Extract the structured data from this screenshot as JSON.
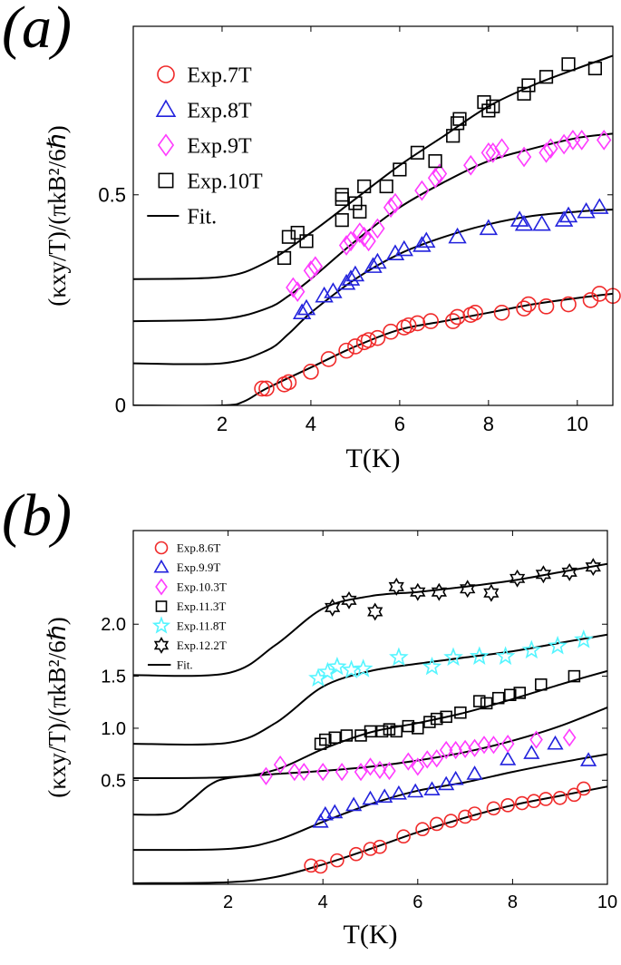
{
  "chart_data": [
    {
      "type": "scatter",
      "panel_label": "(a)",
      "x_label": "T(K)",
      "y_label": "(κxy/T)/(πkB²/6ℏ)",
      "xlim": [
        0,
        10.8
      ],
      "ylim": [
        0,
        0.9
      ],
      "xticks": [
        2,
        4,
        6,
        8,
        10
      ],
      "yticks": [
        0,
        0.5
      ],
      "legend": "upper left",
      "series": [
        {
          "name": "Exp.7T",
          "color": "#f02a2a",
          "marker": "circle",
          "x": [
            2.9,
            3.0,
            3.4,
            3.5,
            4.0,
            4.4,
            4.8,
            5.0,
            5.2,
            5.3,
            5.5,
            5.8,
            6.1,
            6.2,
            6.4,
            6.7,
            7.2,
            7.3,
            7.6,
            7.7,
            8.3,
            8.8,
            8.9,
            9.3,
            9.8,
            10.3,
            10.5,
            10.8
          ],
          "values": [
            0.04,
            0.04,
            0.05,
            0.055,
            0.08,
            0.11,
            0.13,
            0.14,
            0.15,
            0.155,
            0.16,
            0.175,
            0.185,
            0.19,
            0.195,
            0.2,
            0.2,
            0.21,
            0.215,
            0.22,
            0.22,
            0.23,
            0.24,
            0.235,
            0.24,
            0.25,
            0.265,
            0.26
          ]
        },
        {
          "name": "Exp.8T",
          "color": "#2222dd",
          "marker": "triangle",
          "x": [
            3.8,
            3.9,
            4.3,
            4.5,
            4.8,
            4.9,
            5.0,
            5.4,
            5.5,
            5.9,
            6.1,
            6.5,
            6.6,
            7.3,
            8.0,
            8.7,
            8.8,
            9.2,
            9.7,
            9.8,
            10.2,
            10.5
          ],
          "values": [
            0.22,
            0.23,
            0.26,
            0.27,
            0.29,
            0.3,
            0.31,
            0.33,
            0.34,
            0.36,
            0.37,
            0.38,
            0.39,
            0.4,
            0.42,
            0.44,
            0.43,
            0.43,
            0.44,
            0.45,
            0.46,
            0.47
          ]
        },
        {
          "name": "Exp.9T",
          "color": "#ff3cff",
          "marker": "diamond",
          "x": [
            3.6,
            3.7,
            4.0,
            4.1,
            4.8,
            4.9,
            5.1,
            5.2,
            5.3,
            5.5,
            5.8,
            5.9,
            6.5,
            6.8,
            6.9,
            7.6,
            8.0,
            8.1,
            8.3,
            8.8,
            9.3,
            9.4,
            9.7,
            9.9,
            10.1,
            10.6
          ],
          "values": [
            0.28,
            0.27,
            0.32,
            0.33,
            0.38,
            0.39,
            0.41,
            0.4,
            0.39,
            0.42,
            0.47,
            0.48,
            0.51,
            0.54,
            0.55,
            0.57,
            0.6,
            0.6,
            0.61,
            0.59,
            0.6,
            0.61,
            0.62,
            0.63,
            0.63,
            0.63
          ]
        },
        {
          "name": "Exp.10T",
          "color": "#000000",
          "marker": "square",
          "x": [
            3.4,
            3.5,
            3.7,
            3.9,
            4.7,
            4.7,
            4.7,
            5.0,
            5.1,
            5.2,
            5.7,
            6.0,
            6.4,
            6.8,
            7.2,
            7.3,
            7.35,
            7.9,
            8.0,
            8.1,
            8.8,
            8.9,
            9.3,
            9.8,
            10.4
          ],
          "values": [
            0.35,
            0.4,
            0.41,
            0.39,
            0.44,
            0.49,
            0.5,
            0.48,
            0.46,
            0.52,
            0.52,
            0.56,
            0.6,
            0.58,
            0.64,
            0.67,
            0.68,
            0.72,
            0.7,
            0.71,
            0.74,
            0.76,
            0.78,
            0.81,
            0.8
          ]
        }
      ],
      "fit": {
        "name": "Fit.",
        "color": "#000000",
        "curves": [
          {
            "x": [
              0,
              2,
              2.5,
              3,
              4,
              5,
              6,
              7,
              8,
              9,
              10,
              10.8
            ],
            "values": [
              0,
              0,
              0.01,
              0.04,
              0.09,
              0.14,
              0.18,
              0.2,
              0.22,
              0.24,
              0.255,
              0.265
            ]
          },
          {
            "x": [
              0,
              2,
              3,
              3.5,
              4,
              5,
              6,
              7,
              8,
              9,
              10,
              10.8
            ],
            "values": [
              0.1,
              0.1,
              0.13,
              0.17,
              0.22,
              0.3,
              0.36,
              0.4,
              0.43,
              0.45,
              0.46,
              0.465
            ]
          },
          {
            "x": [
              0,
              2,
              3,
              3.5,
              4,
              5,
              6,
              7,
              8,
              9,
              10,
              10.8
            ],
            "values": [
              0.2,
              0.205,
              0.23,
              0.26,
              0.3,
              0.39,
              0.47,
              0.53,
              0.58,
              0.61,
              0.635,
              0.645
            ]
          },
          {
            "x": [
              0,
              2,
              3,
              4,
              5,
              6,
              7,
              8,
              9,
              10,
              10.8
            ],
            "values": [
              0.3,
              0.305,
              0.34,
              0.41,
              0.49,
              0.57,
              0.64,
              0.71,
              0.76,
              0.8,
              0.83
            ]
          }
        ]
      }
    },
    {
      "type": "scatter",
      "panel_label": "(b)",
      "x_label": "T(K)",
      "y_label": "(κxy/T)/(πkB²/6ℏ)",
      "xlim": [
        0,
        10
      ],
      "ylim": [
        -0.5,
        2.9
      ],
      "xticks": [
        2,
        4,
        6,
        8,
        10
      ],
      "yticks": [
        0.5,
        {
          "value": 1,
          "label": "1.0"
        },
        1.5,
        {
          "value": 2,
          "label": "2.0"
        }
      ],
      "legend": "upper left",
      "series": [
        {
          "name": "Exp.8.6T",
          "color": "#f02a2a",
          "marker": "circle",
          "x": [
            3.75,
            3.95,
            4.3,
            4.7,
            5.0,
            5.2,
            5.7,
            6.1,
            6.4,
            6.7,
            7.0,
            7.2,
            7.6,
            7.9,
            8.2,
            8.45,
            8.7,
            9.0,
            9.3,
            9.5
          ],
          "values": [
            -0.32,
            -0.33,
            -0.27,
            -0.21,
            -0.16,
            -0.14,
            -0.04,
            0.03,
            0.08,
            0.11,
            0.15,
            0.18,
            0.23,
            0.26,
            0.28,
            0.3,
            0.32,
            0.33,
            0.36,
            0.42
          ]
        },
        {
          "name": "Exp.9.9T",
          "color": "#2222dd",
          "marker": "triangle",
          "x": [
            3.95,
            4.05,
            4.25,
            4.65,
            5.0,
            5.3,
            5.6,
            5.95,
            6.3,
            6.6,
            6.8,
            7.2,
            7.9,
            8.4,
            8.9,
            9.6
          ],
          "values": [
            0.1,
            0.17,
            0.19,
            0.26,
            0.32,
            0.34,
            0.37,
            0.39,
            0.41,
            0.46,
            0.51,
            0.56,
            0.7,
            0.76,
            0.85,
            0.69
          ]
        },
        {
          "name": "Exp.10.3T",
          "color": "#ff3cff",
          "marker": "diamond",
          "x": [
            2.8,
            3.1,
            3.4,
            3.6,
            4.0,
            4.4,
            4.8,
            5.0,
            5.2,
            5.4,
            5.8,
            6.0,
            6.2,
            6.4,
            6.6,
            6.8,
            7.0,
            7.2,
            7.4,
            7.6,
            7.9,
            8.5,
            9.2
          ],
          "values": [
            0.54,
            0.65,
            0.58,
            0.58,
            0.58,
            0.58,
            0.58,
            0.63,
            0.6,
            0.59,
            0.68,
            0.63,
            0.7,
            0.71,
            0.79,
            0.79,
            0.8,
            0.81,
            0.84,
            0.84,
            0.85,
            0.89,
            0.91
          ]
        },
        {
          "name": "Exp.11.3T",
          "color": "#000000",
          "marker": "square",
          "x": [
            3.95,
            4.05,
            4.25,
            4.5,
            4.8,
            5.0,
            5.25,
            5.4,
            5.55,
            5.8,
            6.0,
            6.25,
            6.4,
            6.6,
            6.9,
            7.3,
            7.45,
            7.7,
            7.95,
            8.15,
            8.6,
            9.3
          ],
          "values": [
            0.85,
            0.89,
            0.91,
            0.93,
            0.93,
            0.97,
            0.97,
            0.99,
            0.97,
            1.02,
            1.0,
            1.06,
            1.09,
            1.11,
            1.15,
            1.26,
            1.24,
            1.29,
            1.32,
            1.34,
            1.42,
            1.5
          ]
        },
        {
          "name": "Exp.11.8T",
          "color": "#55f5ff",
          "marker": "star",
          "x": [
            3.9,
            4.1,
            4.3,
            4.6,
            4.85,
            5.6,
            6.3,
            6.75,
            7.3,
            7.85,
            8.4,
            8.95,
            9.5
          ],
          "values": [
            1.48,
            1.54,
            1.59,
            1.56,
            1.57,
            1.68,
            1.59,
            1.68,
            1.69,
            1.69,
            1.75,
            1.79,
            1.85
          ]
        },
        {
          "name": "Exp.12.2T",
          "color": "#000000",
          "marker": "hexagram",
          "x": [
            4.2,
            4.55,
            5.1,
            5.55,
            6.0,
            6.45,
            7.05,
            7.55,
            8.1,
            8.65,
            9.2,
            9.7
          ],
          "values": [
            2.16,
            2.23,
            2.12,
            2.36,
            2.31,
            2.31,
            2.34,
            2.3,
            2.44,
            2.48,
            2.5,
            2.55
          ]
        }
      ],
      "fit": {
        "name": "Fit.",
        "color": "#000000",
        "curves": [
          {
            "x": [
              0,
              2,
              3,
              4,
              5,
              6,
              7,
              8,
              9,
              10
            ],
            "values": [
              -0.49,
              -0.48,
              -0.43,
              -0.31,
              -0.16,
              0.0,
              0.14,
              0.26,
              0.35,
              0.44
            ]
          },
          {
            "x": [
              0,
              2,
              3,
              4,
              5,
              6,
              7,
              8,
              9,
              10
            ],
            "values": [
              -0.17,
              -0.16,
              -0.08,
              0.1,
              0.27,
              0.4,
              0.48,
              0.58,
              0.67,
              0.75
            ]
          },
          {
            "x": [
              0,
              0.8,
              1.2,
              1.6,
              2,
              3,
              4,
              5,
              6,
              7,
              8,
              9,
              10
            ],
            "values": [
              0.17,
              0.18,
              0.3,
              0.45,
              0.52,
              0.56,
              0.59,
              0.63,
              0.69,
              0.77,
              0.88,
              1.02,
              1.2
            ]
          },
          {
            "x": [
              0,
              2,
              3,
              4,
              5,
              6,
              7,
              8,
              9,
              10
            ],
            "values": [
              0.52,
              0.53,
              0.6,
              0.8,
              0.96,
              1.05,
              1.15,
              1.28,
              1.42,
              1.55
            ]
          },
          {
            "x": [
              0,
              2,
              3,
              4,
              5,
              6,
              7,
              8,
              9,
              10
            ],
            "values": [
              0.85,
              0.86,
              1.05,
              1.4,
              1.55,
              1.62,
              1.68,
              1.74,
              1.82,
              1.9
            ]
          },
          {
            "x": [
              0,
              2,
              3,
              4,
              5,
              6,
              7,
              8,
              9,
              10
            ],
            "values": [
              1.51,
              1.53,
              1.8,
              2.15,
              2.27,
              2.31,
              2.36,
              2.42,
              2.5,
              2.58
            ]
          }
        ]
      }
    }
  ]
}
